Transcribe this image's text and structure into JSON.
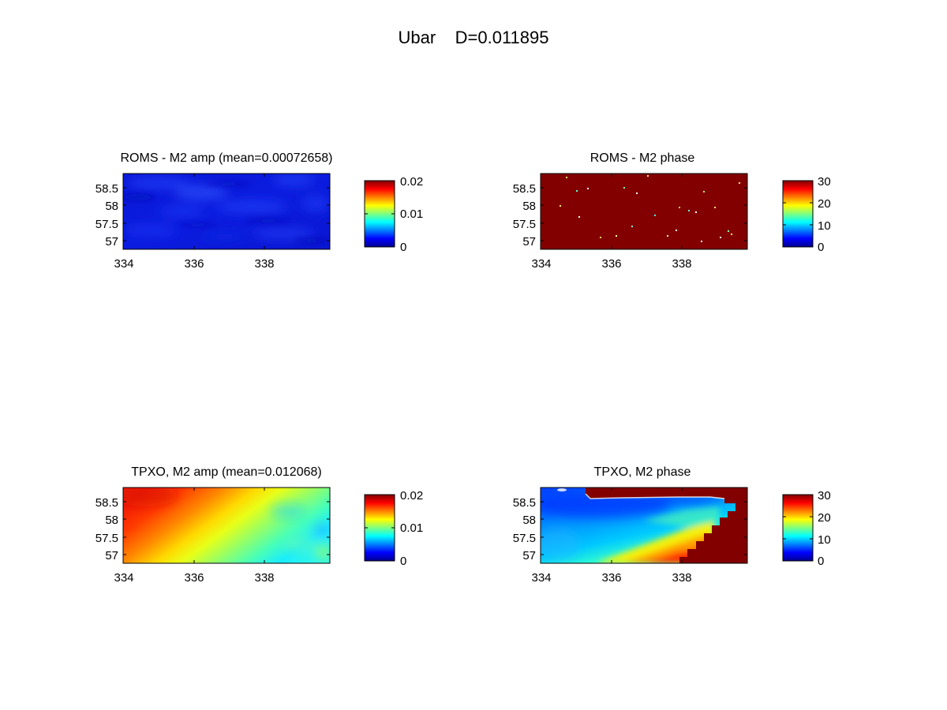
{
  "figure": {
    "suptitle": "Ubar    D=0.011895"
  },
  "chart_data": [
    {
      "type": "heatmap",
      "title": "ROMS - M2 amp (mean=0.00072658)",
      "x_ticks": [
        "334",
        "336",
        "338"
      ],
      "x_tick_values": [
        334,
        336,
        338
      ],
      "y_ticks": [
        "58.5",
        "58",
        "57.5",
        "57"
      ],
      "y_tick_values": [
        58.5,
        58,
        57.5,
        57
      ],
      "xlim": [
        334,
        339.8
      ],
      "ylim": [
        56.8,
        58.9
      ],
      "colorbar": {
        "ticks": [
          "0.02",
          "0.01",
          "0"
        ],
        "tick_values": [
          0.02,
          0.01,
          0
        ],
        "range": [
          0,
          0.02
        ],
        "colormap": "jet"
      },
      "field_description": "near-uniform low amplitude (about 0.0007), dark blue with faint streaks",
      "mean": 0.00072658
    },
    {
      "type": "heatmap",
      "title": "ROMS - M2 phase",
      "x_ticks": [
        "334",
        "336",
        "338"
      ],
      "x_tick_values": [
        334,
        336,
        338
      ],
      "y_ticks": [
        "58.5",
        "58",
        "57.5",
        "57"
      ],
      "y_tick_values": [
        58.5,
        58,
        57.5,
        57
      ],
      "xlim": [
        334,
        339.8
      ],
      "ylim": [
        56.8,
        58.9
      ],
      "colorbar": {
        "ticks": [
          "30",
          "20",
          "10",
          "0"
        ],
        "tick_values": [
          30,
          20,
          10,
          0
        ],
        "range": [
          0,
          30
        ],
        "colormap": "jet"
      },
      "field_description": "saturated at the maximum (dark red) with scattered speckles"
    },
    {
      "type": "heatmap",
      "title": "TPXO, M2 amp (mean=0.012068)",
      "x_ticks": [
        "334",
        "336",
        "338"
      ],
      "x_tick_values": [
        334,
        336,
        338
      ],
      "y_ticks": [
        "58.5",
        "58",
        "57.5",
        "57"
      ],
      "y_tick_values": [
        58.5,
        58,
        57.5,
        57
      ],
      "xlim": [
        334,
        339.8
      ],
      "ylim": [
        56.8,
        58.9
      ],
      "colorbar": {
        "ticks": [
          "0.02",
          "0.01",
          "0"
        ],
        "tick_values": [
          0.02,
          0.01,
          0
        ],
        "range": [
          0,
          0.02
        ],
        "colormap": "jet"
      },
      "field_description": "gradient from about 0.018 in the west (red) to about 0.008 in the east (cyan)",
      "mean": 0.012068
    },
    {
      "type": "heatmap",
      "title": "TPXO, M2 phase",
      "x_ticks": [
        "334",
        "336",
        "338"
      ],
      "x_tick_values": [
        334,
        336,
        338
      ],
      "y_ticks": [
        "58.5",
        "58",
        "57.5",
        "57"
      ],
      "y_tick_values": [
        58.5,
        58,
        57.5,
        57
      ],
      "xlim": [
        334,
        339.8
      ],
      "ylim": [
        56.8,
        58.9
      ],
      "colorbar": {
        "ticks": [
          "30",
          "20",
          "10",
          "0"
        ],
        "tick_values": [
          30,
          20,
          10,
          0
        ],
        "range": [
          0,
          30
        ],
        "colormap": "jet"
      },
      "field_description": "low phase (blue) in the north-west, rising to red toward the south-east, dark red stepped region in the north-east"
    }
  ]
}
